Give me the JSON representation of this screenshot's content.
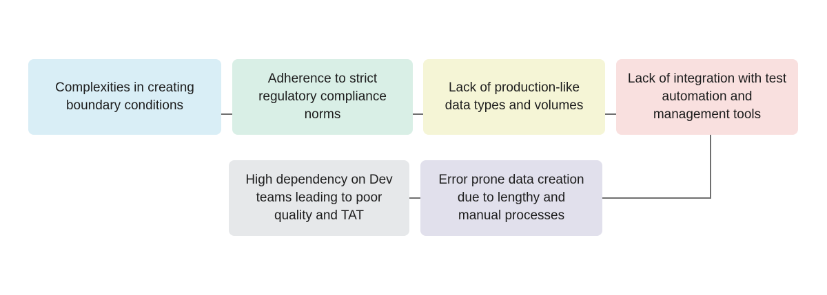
{
  "diagram": {
    "nodes": [
      {
        "label": "Complexities in creating boundary conditions",
        "color": "#d9eef6"
      },
      {
        "label": "Adherence to strict regulatory compliance norms",
        "color": "#d9efe6"
      },
      {
        "label": "Lack of production-like data types and volumes",
        "color": "#f5f5d6"
      },
      {
        "label": "Lack of integration with test automation and management tools",
        "color": "#f9e0df"
      },
      {
        "label": "Error prone data creation due to lengthy and manual processes",
        "color": "#e1e0ec"
      },
      {
        "label": "High dependency on Dev teams leading to poor quality and TAT",
        "color": "#e6e8ea"
      }
    ],
    "connector_color": "#6f6f6f"
  }
}
